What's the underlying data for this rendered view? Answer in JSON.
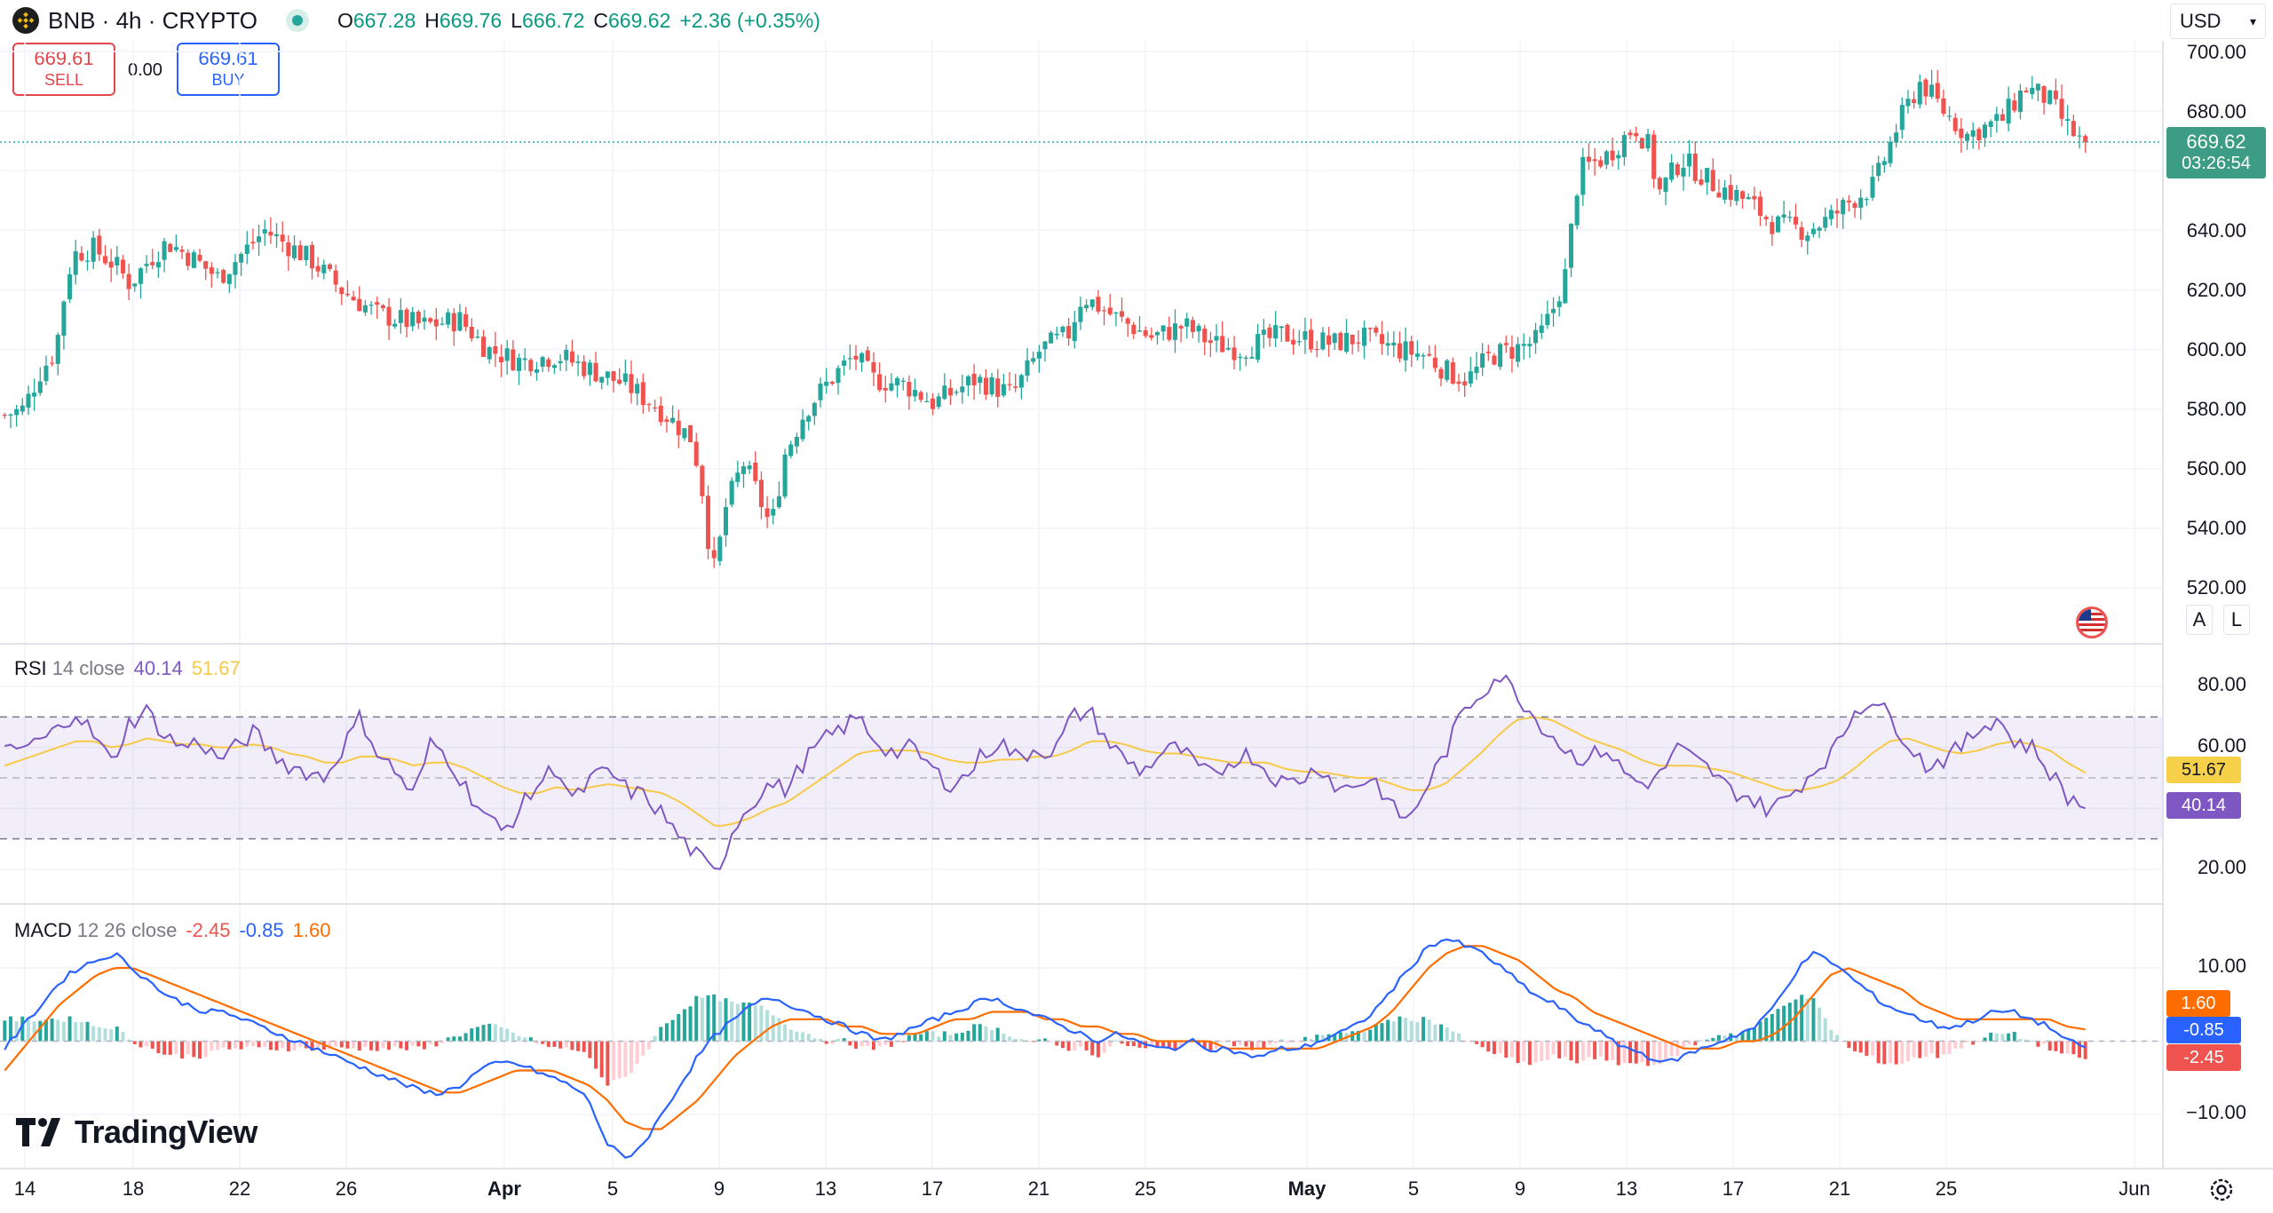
{
  "header": {
    "symbol": "BNB",
    "title": "BNB · 4h · CRYPTO",
    "open_label": "O",
    "open": "667.28",
    "high_label": "H",
    "high": "669.76",
    "low_label": "L",
    "low": "666.72",
    "close_label": "C",
    "close": "669.62",
    "change": "+2.36 (+0.35%)"
  },
  "trade": {
    "sell_price": "669.61",
    "sell_label": "SELL",
    "spread": "0.00",
    "buy_price": "669.61",
    "buy_label": "BUY"
  },
  "currency": "USD",
  "price_axis": {
    "ticks": [
      "700.00",
      "680.00",
      "640.00",
      "620.00",
      "600.00",
      "580.00",
      "560.00",
      "540.00",
      "520.00"
    ],
    "current_price": "669.62",
    "countdown": "03:26:54"
  },
  "scale_buttons": {
    "auto": "A",
    "log": "L"
  },
  "rsi": {
    "name": "RSI",
    "params": "14 close",
    "value": "40.14",
    "ma_value": "51.67",
    "ticks": [
      "80.00",
      "60.00",
      "20.00"
    ]
  },
  "macd": {
    "name": "MACD",
    "params": "12 26 close",
    "hist_value": "-2.45",
    "macd_value": "-0.85",
    "signal_value": "1.60",
    "ticks": [
      "10.00",
      "−10.00"
    ]
  },
  "time_axis": {
    "labels": [
      {
        "text": "14",
        "bold": false
      },
      {
        "text": "18",
        "bold": false
      },
      {
        "text": "22",
        "bold": false
      },
      {
        "text": "26",
        "bold": false
      },
      {
        "text": "Apr",
        "bold": true
      },
      {
        "text": "5",
        "bold": false
      },
      {
        "text": "9",
        "bold": false
      },
      {
        "text": "13",
        "bold": false
      },
      {
        "text": "17",
        "bold": false
      },
      {
        "text": "21",
        "bold": false
      },
      {
        "text": "25",
        "bold": false
      },
      {
        "text": "May",
        "bold": true
      },
      {
        "text": "5",
        "bold": false
      },
      {
        "text": "9",
        "bold": false
      },
      {
        "text": "13",
        "bold": false
      },
      {
        "text": "17",
        "bold": false
      },
      {
        "text": "21",
        "bold": false
      },
      {
        "text": "25",
        "bold": false
      },
      {
        "text": "Jun",
        "bold": false
      }
    ]
  },
  "branding": "TradingView",
  "icons": {
    "settings": "gear-icon",
    "flag": "us-flag-icon",
    "logo": "tradingview-logo-icon",
    "coin": "bnb-coin-icon",
    "status": "market-status-icon"
  },
  "colors": {
    "up": "#26a69a",
    "down": "#ef5350",
    "sell": "#e0474c",
    "buy": "#2962ff",
    "price_tag": "#3d9c84",
    "rsi_line": "#7e57c2",
    "rsi_ma": "#f7c948",
    "macd_line": "#2962ff",
    "signal_line": "#ff6d00"
  },
  "chart_data": [
    {
      "type": "candlestick",
      "title": "BNB · 4h · CRYPTO",
      "ylim": [
        510,
        705
      ],
      "x_dates": [
        "Mar 14",
        "Mar 18",
        "Mar 22",
        "Mar 26",
        "Apr 1",
        "Apr 5",
        "Apr 9",
        "Apr 13",
        "Apr 17",
        "Apr 21",
        "Apr 25",
        "May 1",
        "May 5",
        "May 9",
        "May 13",
        "May 17",
        "May 21",
        "May 25",
        "Jun 1"
      ],
      "close_path": [
        [
          0,
          578
        ],
        [
          8,
          580
        ],
        [
          15,
          592
        ],
        [
          22,
          600
        ],
        [
          27,
          625
        ],
        [
          30,
          632
        ],
        [
          38,
          634
        ],
        [
          48,
          628
        ],
        [
          54,
          622
        ],
        [
          62,
          630
        ],
        [
          70,
          636
        ],
        [
          82,
          630
        ],
        [
          92,
          624
        ],
        [
          102,
          632
        ],
        [
          112,
          640
        ],
        [
          120,
          636
        ],
        [
          132,
          630
        ],
        [
          145,
          620
        ],
        [
          160,
          612
        ],
        [
          180,
          608
        ],
        [
          196,
          610
        ],
        [
          208,
          600
        ],
        [
          222,
          596
        ],
        [
          238,
          598
        ],
        [
          256,
          592
        ],
        [
          268,
          588
        ],
        [
          282,
          580
        ],
        [
          296,
          570
        ],
        [
          300,
          555
        ],
        [
          304,
          530
        ],
        [
          306,
          525
        ],
        [
          310,
          546
        ],
        [
          318,
          562
        ],
        [
          324,
          552
        ],
        [
          330,
          540
        ],
        [
          336,
          565
        ],
        [
          345,
          580
        ],
        [
          358,
          592
        ],
        [
          366,
          598
        ],
        [
          374,
          590
        ],
        [
          388,
          588
        ],
        [
          400,
          582
        ],
        [
          418,
          590
        ],
        [
          434,
          585
        ],
        [
          446,
          600
        ],
        [
          458,
          605
        ],
        [
          464,
          618
        ],
        [
          480,
          610
        ],
        [
          494,
          604
        ],
        [
          508,
          608
        ],
        [
          520,
          602
        ],
        [
          532,
          600
        ],
        [
          550,
          605
        ],
        [
          572,
          602
        ],
        [
          584,
          604
        ],
        [
          600,
          600
        ],
        [
          612,
          598
        ],
        [
          622,
          592
        ],
        [
          630,
          590
        ],
        [
          640,
          598
        ],
        [
          650,
          600
        ],
        [
          660,
          603
        ],
        [
          666,
          612
        ],
        [
          672,
          625
        ],
        [
          678,
          660
        ],
        [
          690,
          665
        ],
        [
          702,
          675
        ],
        [
          708,
          668
        ],
        [
          712,
          652
        ],
        [
          722,
          664
        ],
        [
          735,
          656
        ],
        [
          750,
          650
        ],
        [
          762,
          642
        ],
        [
          776,
          640
        ],
        [
          786,
          644
        ],
        [
          795,
          650
        ],
        [
          805,
          655
        ],
        [
          815,
          675
        ],
        [
          825,
          690
        ],
        [
          835,
          680
        ],
        [
          845,
          672
        ],
        [
          860,
          677
        ],
        [
          870,
          688
        ],
        [
          880,
          684
        ],
        [
          888,
          675
        ],
        [
          896,
          668
        ]
      ],
      "last": 669.62
    },
    {
      "type": "line",
      "title": "RSI 14 close",
      "ylim": [
        10,
        90
      ],
      "bands": [
        30,
        50,
        70
      ],
      "series": [
        {
          "name": "RSI",
          "values": [
            58,
            60,
            62,
            66,
            72,
            64,
            55,
            68,
            72,
            64,
            60,
            62,
            56,
            60,
            65,
            58,
            54,
            52,
            50,
            60,
            70,
            58,
            52,
            44,
            62,
            56,
            46,
            38,
            32,
            40,
            48,
            54,
            42,
            50,
            52,
            46,
            44,
            38,
            30,
            24,
            18,
            34,
            42,
            48,
            46,
            56,
            62,
            66,
            70,
            62,
            58,
            60,
            54,
            48,
            50,
            58,
            62,
            56,
            60,
            58,
            70,
            72,
            62,
            56,
            52,
            58,
            60,
            54,
            50,
            56,
            58,
            52,
            48,
            50,
            54,
            46,
            48,
            50,
            40,
            36,
            48,
            58,
            72,
            78,
            84,
            78,
            70,
            64,
            58,
            56,
            60,
            52,
            48,
            50,
            60,
            56,
            52,
            46,
            44,
            40,
            42,
            48,
            54,
            60,
            72,
            76,
            70,
            62,
            54,
            56,
            60,
            66,
            70,
            62,
            60,
            52,
            44,
            40
          ]
        },
        {
          "name": "RSI MA",
          "values": [
            54,
            56,
            58,
            60,
            62,
            62,
            60,
            61,
            63,
            62,
            61,
            61,
            60,
            60,
            61,
            60,
            58,
            57,
            55,
            55,
            57,
            57,
            56,
            54,
            55,
            55,
            53,
            50,
            47,
            45,
            45,
            47,
            46,
            47,
            48,
            47,
            46,
            45,
            42,
            38,
            34,
            35,
            37,
            40,
            42,
            46,
            50,
            54,
            58,
            59,
            59,
            59,
            58,
            56,
            55,
            55,
            56,
            56,
            57,
            57,
            59,
            62,
            62,
            61,
            59,
            58,
            58,
            57,
            56,
            55,
            55,
            55,
            53,
            52,
            52,
            51,
            50,
            50,
            48,
            46,
            46,
            48,
            53,
            58,
            64,
            69,
            70,
            69,
            66,
            63,
            61,
            59,
            56,
            54,
            54,
            54,
            53,
            52,
            50,
            48,
            46,
            46,
            47,
            49,
            53,
            58,
            62,
            63,
            61,
            59,
            58,
            59,
            61,
            62,
            61,
            59,
            55,
            51.67
          ]
        }
      ],
      "last": [
        40.14,
        51.67
      ]
    },
    {
      "type": "line",
      "title": "MACD 12 26 close",
      "ylim": [
        -18,
        18
      ],
      "series": [
        {
          "name": "MACD",
          "values": [
            -1,
            2,
            5,
            8,
            10,
            11,
            12,
            10,
            8,
            6,
            5,
            4,
            4,
            3,
            2,
            1,
            0,
            -1,
            -2,
            -3,
            -4,
            -5,
            -6,
            -7,
            -7,
            -6,
            -4,
            -3,
            -3,
            -4,
            -5,
            -6,
            -8,
            -14,
            -16,
            -14,
            -10,
            -6,
            -2,
            1,
            3,
            5,
            6,
            5,
            4,
            3,
            2,
            1,
            0,
            1,
            2,
            3,
            4,
            5,
            6,
            5,
            4,
            3,
            2,
            1,
            0,
            1,
            0,
            -1,
            -1,
            0,
            -1,
            -1,
            -2,
            -2,
            -1,
            -1,
            0,
            1,
            2,
            4,
            7,
            10,
            13,
            14,
            13,
            12,
            10,
            8,
            6,
            5,
            3,
            2,
            0,
            -1,
            -2,
            -3,
            -2,
            -1,
            0,
            1,
            2,
            5,
            9,
            12,
            11,
            9,
            7,
            5,
            4,
            3,
            2,
            2,
            3,
            4,
            4,
            3,
            2,
            0,
            -0.85
          ]
        },
        {
          "name": "Signal",
          "values": [
            -4,
            -1,
            2,
            5,
            7,
            9,
            10,
            10,
            9,
            8,
            7,
            6,
            5,
            4,
            3,
            2,
            1,
            0,
            -1,
            -2,
            -3,
            -4,
            -5,
            -6,
            -7,
            -7,
            -6,
            -5,
            -4,
            -4,
            -4,
            -5,
            -6,
            -8,
            -11,
            -12,
            -12,
            -10,
            -8,
            -5,
            -2,
            0,
            2,
            3,
            3,
            3,
            2,
            2,
            1,
            1,
            1,
            2,
            3,
            3,
            4,
            4,
            4,
            3,
            3,
            2,
            2,
            1,
            1,
            0,
            0,
            0,
            0,
            -1,
            -1,
            -1,
            -1,
            -1,
            -1,
            0,
            1,
            2,
            4,
            7,
            10,
            12,
            13,
            13,
            12,
            11,
            9,
            7,
            6,
            4,
            3,
            2,
            1,
            0,
            -1,
            -1,
            -1,
            0,
            0,
            1,
            3,
            6,
            9,
            10,
            9,
            8,
            7,
            5,
            4,
            3,
            3,
            3,
            3,
            3,
            3,
            2,
            1.6
          ]
        }
      ],
      "last": [
        -2.45,
        -0.85,
        1.6
      ]
    }
  ]
}
